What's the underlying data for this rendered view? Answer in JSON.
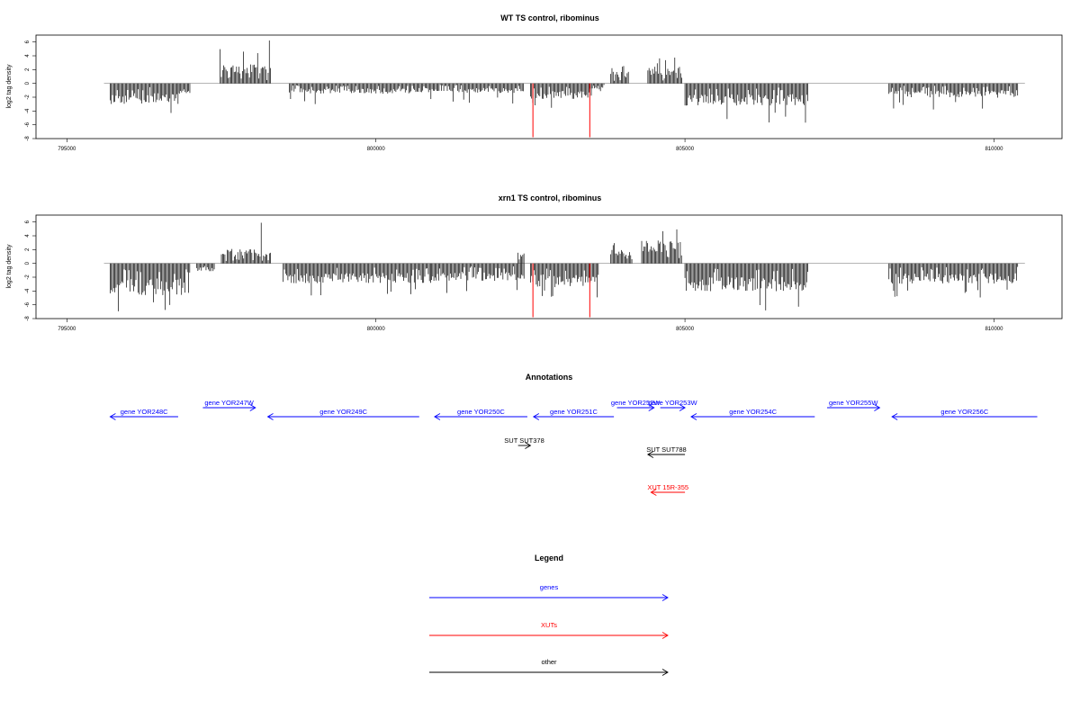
{
  "chart_data": [
    {
      "type": "bar",
      "title": "WT TS control, ribominus",
      "ylabel": "log2 tag density",
      "xlabel": "",
      "xlim": [
        794500,
        811100
      ],
      "ylim": [
        -8,
        7
      ],
      "xticks": [
        795000,
        800000,
        805000,
        810000
      ],
      "yticks": [
        -8,
        -6,
        -4,
        -2,
        0,
        2,
        4,
        6
      ],
      "baseline_extent": [
        795600,
        810500
      ],
      "grid": false,
      "regions": [
        {
          "start": 795700,
          "end": 796800,
          "sign": -1,
          "typ": 2.6,
          "max": 4.8
        },
        {
          "start": 796800,
          "end": 797000,
          "sign": -1,
          "typ": 1.5,
          "max": 3.0
        },
        {
          "start": 797480,
          "end": 798300,
          "sign": 1,
          "typ": 2.4,
          "max": 6.4
        },
        {
          "start": 798600,
          "end": 800700,
          "sign": -1,
          "typ": 1.3,
          "max": 3.6
        },
        {
          "start": 800700,
          "end": 802400,
          "sign": -1,
          "typ": 1.2,
          "max": 3.2
        },
        {
          "start": 802500,
          "end": 803500,
          "sign": -1,
          "typ": 2.0,
          "max": 3.6
        },
        {
          "start": 803500,
          "end": 803700,
          "sign": -1,
          "typ": 1.0,
          "max": 2.2
        },
        {
          "start": 803800,
          "end": 804100,
          "sign": 1,
          "typ": 1.5,
          "max": 2.8
        },
        {
          "start": 804400,
          "end": 804950,
          "sign": 1,
          "typ": 2.2,
          "max": 3.9
        },
        {
          "start": 805000,
          "end": 807000,
          "sign": -1,
          "typ": 2.8,
          "max": 5.8
        },
        {
          "start": 808300,
          "end": 810400,
          "sign": -1,
          "typ": 1.8,
          "max": 3.8
        }
      ],
      "highlights": [
        {
          "x": 802540,
          "y": -7.8,
          "color": "#ff0000"
        },
        {
          "x": 803460,
          "y": -7.8,
          "color": "#ff0000"
        }
      ]
    },
    {
      "type": "bar",
      "title": "xrn1 TS control, ribominus",
      "ylabel": "log2 tag density",
      "xlabel": "",
      "xlim": [
        794500,
        811100
      ],
      "ylim": [
        -8,
        7
      ],
      "xticks": [
        795000,
        800000,
        805000,
        810000
      ],
      "yticks": [
        -8,
        -6,
        -4,
        -2,
        0,
        2,
        4,
        6
      ],
      "baseline_extent": [
        795600,
        810500
      ],
      "grid": false,
      "regions": [
        {
          "start": 795700,
          "end": 797000,
          "sign": -1,
          "typ": 4.0,
          "max": 7.8
        },
        {
          "start": 797100,
          "end": 797400,
          "sign": -1,
          "typ": 1.0,
          "max": 2.0
        },
        {
          "start": 797500,
          "end": 798300,
          "sign": 1,
          "typ": 1.8,
          "max": 6.0
        },
        {
          "start": 798500,
          "end": 800900,
          "sign": -1,
          "typ": 2.5,
          "max": 4.8
        },
        {
          "start": 800900,
          "end": 802400,
          "sign": -1,
          "typ": 2.2,
          "max": 4.6
        },
        {
          "start": 802300,
          "end": 802400,
          "sign": 1,
          "typ": 1.5,
          "max": 2.0
        },
        {
          "start": 802500,
          "end": 803600,
          "sign": -1,
          "typ": 3.0,
          "max": 5.0
        },
        {
          "start": 803800,
          "end": 804150,
          "sign": 1,
          "typ": 1.8,
          "max": 3.2
        },
        {
          "start": 804300,
          "end": 804950,
          "sign": 1,
          "typ": 3.0,
          "max": 5.8
        },
        {
          "start": 805000,
          "end": 807000,
          "sign": -1,
          "typ": 3.5,
          "max": 7.0
        },
        {
          "start": 808300,
          "end": 810400,
          "sign": -1,
          "typ": 2.6,
          "max": 5.6
        }
      ],
      "highlights": [
        {
          "x": 802540,
          "y": -7.8,
          "color": "#ff0000"
        },
        {
          "x": 803460,
          "y": -7.8,
          "color": "#ff0000"
        }
      ]
    }
  ],
  "annotations": {
    "title": "Annotations",
    "colors": {
      "genes": "#0000ff",
      "XUTs": "#ff0000",
      "other": "#000000"
    },
    "features": [
      {
        "label": "gene YOR248C",
        "start": 795700,
        "end": 796800,
        "dir": "left",
        "row": 1,
        "kind": "genes"
      },
      {
        "label": "gene YOR247W",
        "start": 797200,
        "end": 798050,
        "dir": "right",
        "row": 0,
        "kind": "genes"
      },
      {
        "label": "gene YOR249C",
        "start": 798250,
        "end": 800700,
        "dir": "left",
        "row": 1,
        "kind": "genes"
      },
      {
        "label": "gene YOR250C",
        "start": 800950,
        "end": 802450,
        "dir": "left",
        "row": 1,
        "kind": "genes"
      },
      {
        "label": "gene YOR251C",
        "start": 802550,
        "end": 803850,
        "dir": "left",
        "row": 1,
        "kind": "genes"
      },
      {
        "label": "gene YOR252W",
        "start": 803900,
        "end": 804500,
        "dir": "right",
        "row": 0,
        "kind": "genes"
      },
      {
        "label": "gene YOR253W",
        "start": 804600,
        "end": 805000,
        "dir": "right",
        "row": 0,
        "kind": "genes"
      },
      {
        "label": "gene YOR254C",
        "start": 805100,
        "end": 807100,
        "dir": "left",
        "row": 1,
        "kind": "genes"
      },
      {
        "label": "gene YOR255W",
        "start": 807300,
        "end": 808150,
        "dir": "right",
        "row": 0,
        "kind": "genes"
      },
      {
        "label": "gene YOR256C",
        "start": 808350,
        "end": 810700,
        "dir": "left",
        "row": 1,
        "kind": "genes"
      },
      {
        "label": "SUT SUT378",
        "start": 802300,
        "end": 802500,
        "dir": "right",
        "row": 2,
        "kind": "other"
      },
      {
        "label": "SUT SUT788",
        "start": 804400,
        "end": 805000,
        "dir": "left",
        "row": 3,
        "kind": "other"
      },
      {
        "label": "XUT 15R-355",
        "start": 804450,
        "end": 805000,
        "dir": "left",
        "row": 4,
        "kind": "XUTs"
      }
    ]
  },
  "legend": {
    "title": "Legend",
    "items": [
      {
        "label": "genes",
        "color": "#0000ff"
      },
      {
        "label": "XUTs",
        "color": "#ff0000"
      },
      {
        "label": "other",
        "color": "#000000"
      }
    ]
  }
}
